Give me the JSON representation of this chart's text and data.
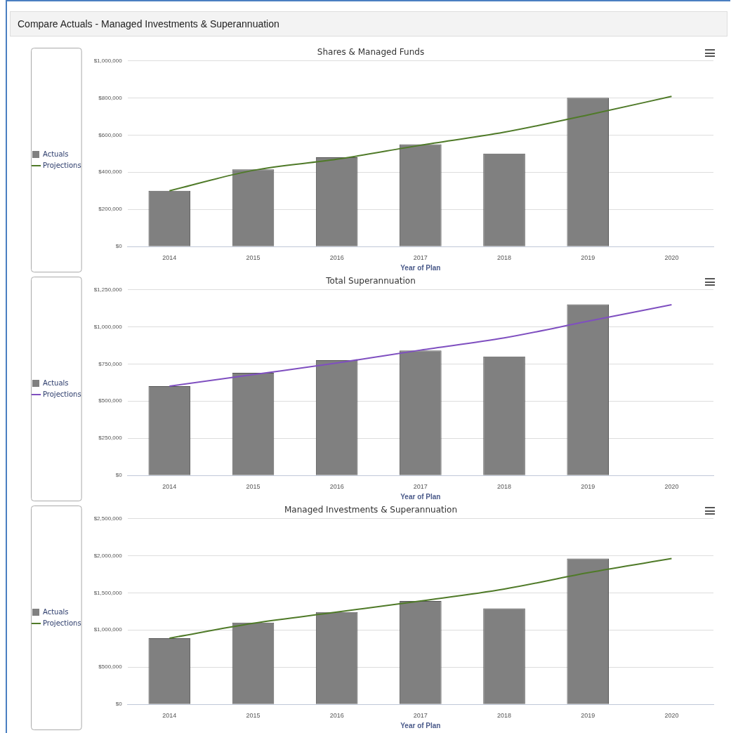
{
  "chart_data": [
    {
      "type": "other",
      "title": "Compare Actuals - Managed Investments & Superannuation"
    },
    {
      "type": "bar",
      "title": "Shares & Managed Funds",
      "xlabel": "Year of Plan",
      "categories": [
        "2014",
        "2015",
        "2016",
        "2017",
        "2018",
        "2019",
        "2020"
      ],
      "series": [
        {
          "name": "Actuals",
          "color": "#808080",
          "values": [
            300000,
            415000,
            480000,
            550000,
            500000,
            800000,
            null
          ]
        },
        {
          "name": "Projections",
          "type": "line",
          "color": "#4f7a28",
          "values": [
            300000,
            410000,
            470000,
            545000,
            615000,
            708000,
            808000
          ]
        }
      ],
      "ylim": [
        0,
        1000000
      ],
      "yticks": [
        {
          "value": 0,
          "label": "$0"
        },
        {
          "value": 200000,
          "label": "$200,000"
        },
        {
          "value": 400000,
          "label": "$400,000"
        },
        {
          "value": 600000,
          "label": "$600,000"
        },
        {
          "value": 800000,
          "label": "$800,000"
        },
        {
          "value": 1000000,
          "label": "$1,000,000"
        }
      ],
      "grid": "y",
      "legend": "left",
      "marker": "none"
    },
    {
      "type": "bar",
      "title": "Total Superannuation",
      "xlabel": "Year of Plan",
      "categories": [
        "2014",
        "2015",
        "2016",
        "2017",
        "2018",
        "2019",
        "2020"
      ],
      "series": [
        {
          "name": "Actuals",
          "color": "#808080",
          "values": [
            600000,
            690000,
            775000,
            840000,
            800000,
            1150000,
            null
          ]
        },
        {
          "name": "Projections",
          "type": "line",
          "color": "#7f4fc0",
          "values": [
            600000,
            678000,
            756000,
            843000,
            925000,
            1037000,
            1148000
          ]
        }
      ],
      "ylim": [
        0,
        1250000
      ],
      "yticks": [
        {
          "value": 0,
          "label": "$0"
        },
        {
          "value": 250000,
          "label": "$250,000"
        },
        {
          "value": 500000,
          "label": "$500,000"
        },
        {
          "value": 750000,
          "label": "$750,000"
        },
        {
          "value": 1000000,
          "label": "$1,000,000"
        },
        {
          "value": 1250000,
          "label": "$1,250,000"
        }
      ],
      "grid": "y",
      "legend": "left",
      "marker": "none"
    },
    {
      "type": "bar",
      "title": "Managed Investments & Superannuation",
      "xlabel": "Year of Plan",
      "categories": [
        "2014",
        "2015",
        "2016",
        "2017",
        "2018",
        "2019",
        "2020"
      ],
      "series": [
        {
          "name": "Actuals",
          "color": "#808080",
          "values": [
            890000,
            1100000,
            1240000,
            1390000,
            1290000,
            1960000,
            null
          ]
        },
        {
          "name": "Projections",
          "type": "line",
          "color": "#4f7a28",
          "values": [
            890000,
            1090000,
            1240000,
            1390000,
            1550000,
            1770000,
            1960000
          ]
        }
      ],
      "ylim": [
        0,
        2500000
      ],
      "yticks": [
        {
          "value": 0,
          "label": "$0"
        },
        {
          "value": 500000,
          "label": "$500,000"
        },
        {
          "value": 1000000,
          "label": "$1,000,000"
        },
        {
          "value": 1500000,
          "label": "$1,500,000"
        },
        {
          "value": 2000000,
          "label": "$2,000,000"
        },
        {
          "value": 2500000,
          "label": "$2,500,000"
        }
      ],
      "grid": "y",
      "legend": "left",
      "marker": "none"
    }
  ]
}
